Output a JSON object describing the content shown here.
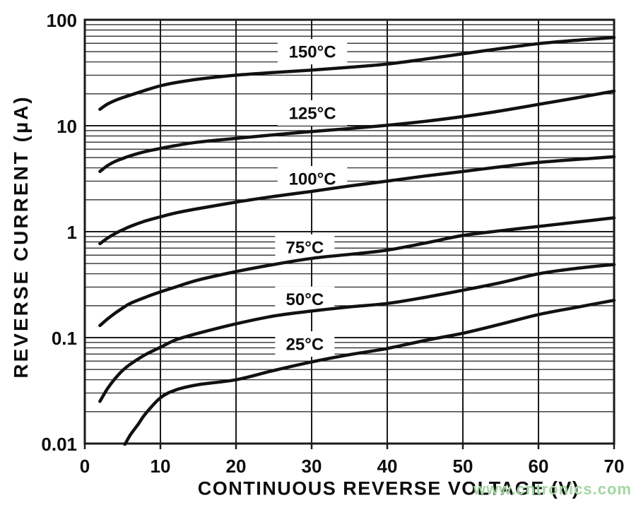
{
  "figure": {
    "background": "#ffffff",
    "text_color": "#0d0d0d"
  },
  "watermark": {
    "text": "www.cntronics.com",
    "color": "#a3d6a3"
  },
  "chart_data": {
    "type": "line",
    "title": "",
    "xlabel": "CONTINUOUS REVERSE VOLTAGE (V)",
    "ylabel": "REVERSE CURRENT (µA)",
    "x_axis": {
      "min": 0,
      "max": 70,
      "tick_values": [
        0,
        10,
        20,
        30,
        40,
        50,
        60,
        70
      ],
      "tick_labels": [
        "0",
        "10",
        "20",
        "30",
        "40",
        "50",
        "60",
        "70"
      ]
    },
    "y_axis": {
      "scale": "log",
      "min": 0.01,
      "max": 100,
      "tick_values": [
        100,
        10,
        1,
        0.1,
        0.01
      ],
      "tick_labels": [
        "100",
        "10",
        "1",
        "0.1",
        "0.01"
      ],
      "minor_gridlines": "multiples 2-9 of each decade"
    },
    "grid": {
      "vertical_step_volts": 10,
      "on": true
    },
    "legend_position": "inline-labels",
    "style": {
      "line_color": "#111111",
      "line_width": 4.5,
      "grid_color": "#1a1a1a",
      "label_box_fill": "#ffffff"
    },
    "series": [
      {
        "name": "150°C",
        "label": {
          "v": 30.1,
          "i": 50
        },
        "points": [
          [
            2,
            14.3
          ],
          [
            3,
            16
          ],
          [
            4,
            17.3
          ],
          [
            5,
            18.4
          ],
          [
            6,
            19.4
          ],
          [
            8,
            21.6
          ],
          [
            10,
            23.8
          ],
          [
            12,
            25.5
          ],
          [
            15,
            27.5
          ],
          [
            20,
            30
          ],
          [
            25,
            31.8
          ],
          [
            30,
            33.5
          ],
          [
            35,
            35.6
          ],
          [
            40,
            38.2
          ],
          [
            45,
            42.5
          ],
          [
            50,
            47.8
          ],
          [
            55,
            53.5
          ],
          [
            60,
            59.5
          ],
          [
            65,
            64
          ],
          [
            70,
            68
          ]
        ]
      },
      {
        "name": "125°C",
        "label": {
          "v": 30.1,
          "i": 13.2
        },
        "points": [
          [
            2,
            3.7
          ],
          [
            3,
            4.2
          ],
          [
            4,
            4.6
          ],
          [
            5,
            4.9
          ],
          [
            6,
            5.2
          ],
          [
            8,
            5.7
          ],
          [
            10,
            6.1
          ],
          [
            12,
            6.5
          ],
          [
            15,
            7.0
          ],
          [
            20,
            7.6
          ],
          [
            25,
            8.2
          ],
          [
            30,
            8.8
          ],
          [
            35,
            9.4
          ],
          [
            40,
            10.1
          ],
          [
            45,
            11.0
          ],
          [
            50,
            12.2
          ],
          [
            55,
            13.8
          ],
          [
            60,
            15.9
          ],
          [
            65,
            18.3
          ],
          [
            70,
            21.2
          ]
        ]
      },
      {
        "name": "100°C",
        "label": {
          "v": 30.1,
          "i": 3.16
        },
        "points": [
          [
            2,
            0.77
          ],
          [
            3,
            0.87
          ],
          [
            4,
            0.96
          ],
          [
            5,
            1.04
          ],
          [
            6,
            1.12
          ],
          [
            8,
            1.26
          ],
          [
            10,
            1.38
          ],
          [
            12,
            1.5
          ],
          [
            15,
            1.65
          ],
          [
            20,
            1.9
          ],
          [
            25,
            2.15
          ],
          [
            30,
            2.4
          ],
          [
            35,
            2.7
          ],
          [
            40,
            3.0
          ],
          [
            45,
            3.35
          ],
          [
            50,
            3.7
          ],
          [
            55,
            4.1
          ],
          [
            60,
            4.5
          ],
          [
            65,
            4.8
          ],
          [
            70,
            5.1
          ]
        ]
      },
      {
        "name": "75°C",
        "label": {
          "v": 29.1,
          "i": 0.715
        },
        "points": [
          [
            2,
            0.13
          ],
          [
            3,
            0.15
          ],
          [
            4,
            0.17
          ],
          [
            5,
            0.19
          ],
          [
            6,
            0.21
          ],
          [
            8,
            0.24
          ],
          [
            10,
            0.27
          ],
          [
            12,
            0.3
          ],
          [
            15,
            0.35
          ],
          [
            20,
            0.42
          ],
          [
            25,
            0.49
          ],
          [
            30,
            0.56
          ],
          [
            35,
            0.61
          ],
          [
            40,
            0.67
          ],
          [
            45,
            0.78
          ],
          [
            50,
            0.92
          ],
          [
            55,
            1.02
          ],
          [
            60,
            1.12
          ],
          [
            65,
            1.23
          ],
          [
            70,
            1.35
          ]
        ]
      },
      {
        "name": "50°C",
        "label": {
          "v": 29.1,
          "i": 0.23
        },
        "points": [
          [
            2,
            0.025
          ],
          [
            3,
            0.033
          ],
          [
            4,
            0.041
          ],
          [
            5,
            0.049
          ],
          [
            6,
            0.056
          ],
          [
            8,
            0.069
          ],
          [
            10,
            0.081
          ],
          [
            12,
            0.095
          ],
          [
            15,
            0.11
          ],
          [
            20,
            0.135
          ],
          [
            25,
            0.16
          ],
          [
            30,
            0.178
          ],
          [
            35,
            0.195
          ],
          [
            40,
            0.21
          ],
          [
            45,
            0.24
          ],
          [
            50,
            0.28
          ],
          [
            55,
            0.33
          ],
          [
            60,
            0.4
          ],
          [
            65,
            0.45
          ],
          [
            70,
            0.49
          ]
        ]
      },
      {
        "name": "25°C",
        "label": {
          "v": 29.1,
          "i": 0.087
        },
        "points": [
          [
            5.3,
            0.0098
          ],
          [
            6,
            0.012
          ],
          [
            7,
            0.015
          ],
          [
            8,
            0.019
          ],
          [
            10,
            0.027
          ],
          [
            12,
            0.032
          ],
          [
            15,
            0.036
          ],
          [
            20,
            0.04
          ],
          [
            25,
            0.049
          ],
          [
            30,
            0.059
          ],
          [
            35,
            0.069
          ],
          [
            40,
            0.079
          ],
          [
            45,
            0.094
          ],
          [
            50,
            0.11
          ],
          [
            55,
            0.134
          ],
          [
            60,
            0.165
          ],
          [
            65,
            0.193
          ],
          [
            70,
            0.225
          ]
        ]
      }
    ]
  }
}
